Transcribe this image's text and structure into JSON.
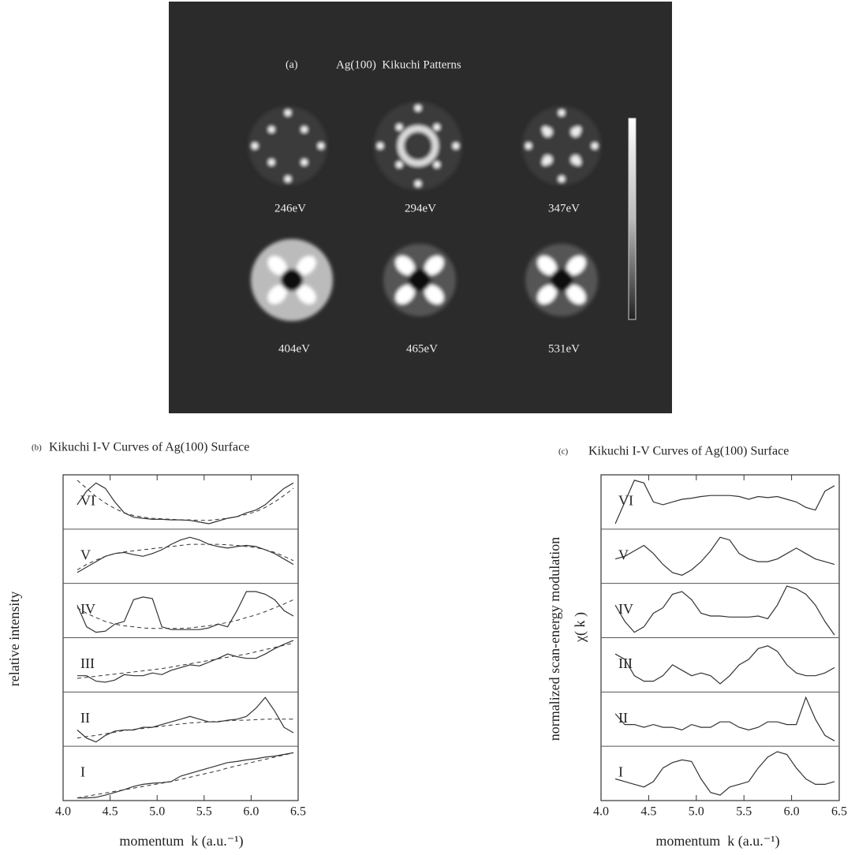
{
  "panel_a": {
    "label": "(a)",
    "title": "Ag(100)  Kikuchi Patterns",
    "energies": [
      "246eV",
      "294eV",
      "347eV",
      "404eV",
      "465eV",
      "531eV"
    ]
  },
  "chart_data": [
    {
      "type": "line",
      "panel_label": "(b)",
      "title": "Kikuchi I-V Curves of Ag(100) Surface",
      "y_label": "relative intensity",
      "x_label": "momentum  k (a.u.⁻¹)",
      "xlim": [
        4.0,
        6.5
      ],
      "xticks": [
        {
          "value": 4,
          "label": "4.0"
        },
        4.5,
        {
          "value": 5,
          "label": "5.0"
        },
        5.5,
        {
          "value": 6,
          "label": "6.0"
        },
        6.5
      ],
      "ylim": [
        0,
        1
      ],
      "color": "#333",
      "x": [
        4.15,
        4.25,
        4.35,
        4.45,
        4.55,
        4.65,
        4.75,
        4.85,
        4.95,
        5.05,
        5.15,
        5.25,
        5.35,
        5.45,
        5.55,
        5.65,
        5.75,
        5.85,
        5.95,
        6.05,
        6.15,
        6.25,
        6.35,
        6.45
      ],
      "series": [
        {
          "name": "VI",
          "values": [
            0.45,
            0.7,
            0.85,
            0.75,
            0.5,
            0.3,
            0.22,
            0.2,
            0.18,
            0.18,
            0.17,
            0.17,
            0.16,
            0.13,
            0.1,
            0.15,
            0.2,
            0.23,
            0.3,
            0.35,
            0.45,
            0.6,
            0.75,
            0.85
          ],
          "dashed_values": [
            0.9,
            0.75,
            0.6,
            0.48,
            0.38,
            0.3,
            0.25,
            0.22,
            0.2,
            0.19,
            0.18,
            0.17,
            0.17,
            0.16,
            0.16,
            0.18,
            0.2,
            0.23,
            0.27,
            0.32,
            0.4,
            0.5,
            0.62,
            0.75
          ]
        },
        {
          "name": "V",
          "values": [
            0.2,
            0.3,
            0.4,
            0.5,
            0.55,
            0.57,
            0.53,
            0.5,
            0.55,
            0.62,
            0.72,
            0.8,
            0.85,
            0.8,
            0.72,
            0.68,
            0.65,
            0.68,
            0.7,
            0.68,
            0.62,
            0.55,
            0.45,
            0.35
          ],
          "dashed_values": [
            0.25,
            0.35,
            0.43,
            0.5,
            0.55,
            0.58,
            0.6,
            0.62,
            0.64,
            0.66,
            0.68,
            0.7,
            0.72,
            0.72,
            0.72,
            0.72,
            0.71,
            0.7,
            0.68,
            0.66,
            0.62,
            0.57,
            0.5,
            0.42
          ]
        },
        {
          "name": "IV",
          "values": [
            0.6,
            0.2,
            0.1,
            0.12,
            0.25,
            0.3,
            0.7,
            0.75,
            0.72,
            0.2,
            0.15,
            0.15,
            0.15,
            0.15,
            0.18,
            0.25,
            0.2,
            0.5,
            0.85,
            0.85,
            0.8,
            0.7,
            0.5,
            0.4
          ],
          "dashed_values": [
            0.55,
            0.45,
            0.37,
            0.3,
            0.25,
            0.22,
            0.2,
            0.18,
            0.17,
            0.17,
            0.17,
            0.17,
            0.18,
            0.2,
            0.22,
            0.25,
            0.28,
            0.32,
            0.37,
            0.42,
            0.48,
            0.55,
            0.62,
            0.7
          ]
        },
        {
          "name": "III",
          "values": [
            0.3,
            0.3,
            0.2,
            0.18,
            0.22,
            0.32,
            0.3,
            0.3,
            0.35,
            0.32,
            0.4,
            0.45,
            0.5,
            0.48,
            0.55,
            0.62,
            0.7,
            0.65,
            0.62,
            0.62,
            0.7,
            0.8,
            0.88,
            0.95
          ],
          "dashed_values": [
            0.25,
            0.27,
            0.29,
            0.31,
            0.33,
            0.35,
            0.37,
            0.39,
            0.41,
            0.43,
            0.46,
            0.49,
            0.52,
            0.55,
            0.58,
            0.61,
            0.64,
            0.67,
            0.7,
            0.74,
            0.78,
            0.82,
            0.86,
            0.9
          ]
        },
        {
          "name": "II",
          "values": [
            0.3,
            0.15,
            0.08,
            0.2,
            0.28,
            0.3,
            0.3,
            0.35,
            0.35,
            0.4,
            0.45,
            0.5,
            0.55,
            0.5,
            0.45,
            0.45,
            0.48,
            0.5,
            0.55,
            0.7,
            0.9,
            0.65,
            0.35,
            0.25
          ],
          "dashed_values": [
            0.15,
            0.18,
            0.2,
            0.23,
            0.26,
            0.29,
            0.31,
            0.33,
            0.35,
            0.37,
            0.39,
            0.41,
            0.43,
            0.44,
            0.45,
            0.46,
            0.47,
            0.48,
            0.48,
            0.49,
            0.5,
            0.5,
            0.5,
            0.5
          ]
        },
        {
          "name": "I",
          "values": [
            0.05,
            0.05,
            0.06,
            0.1,
            0.15,
            0.2,
            0.26,
            0.3,
            0.32,
            0.33,
            0.35,
            0.45,
            0.5,
            0.55,
            0.6,
            0.65,
            0.7,
            0.72,
            0.75,
            0.77,
            0.8,
            0.82,
            0.85,
            0.88
          ],
          "dashed_values": [
            0.05,
            0.08,
            0.11,
            0.14,
            0.17,
            0.2,
            0.23,
            0.26,
            0.29,
            0.32,
            0.35,
            0.39,
            0.43,
            0.47,
            0.51,
            0.55,
            0.6,
            0.64,
            0.68,
            0.72,
            0.76,
            0.8,
            0.84,
            0.88
          ]
        }
      ]
    },
    {
      "type": "line",
      "panel_label": "(c)",
      "title": "Kikuchi I-V Curves of Ag(100) Surface",
      "y_label": "normalized scan-energy modulation",
      "y_label_2": "χ( k )",
      "x_label": "momentum  k (a.u.⁻¹)",
      "xlim": [
        4.0,
        6.5
      ],
      "xticks": [
        {
          "value": 4,
          "label": "4.0"
        },
        4.5,
        {
          "value": 5,
          "label": "5.0"
        },
        5.5,
        {
          "value": 6,
          "label": "6.0"
        },
        6.5
      ],
      "ylim": [
        0,
        1
      ],
      "color": "#333",
      "x": [
        4.15,
        4.25,
        4.35,
        4.45,
        4.55,
        4.65,
        4.75,
        4.85,
        4.95,
        5.05,
        5.15,
        5.25,
        5.35,
        5.45,
        5.55,
        5.65,
        5.75,
        5.85,
        5.95,
        6.05,
        6.15,
        6.25,
        6.35,
        6.45
      ],
      "series": [
        {
          "name": "VI",
          "values": [
            0.1,
            0.5,
            0.9,
            0.85,
            0.5,
            0.45,
            0.5,
            0.55,
            0.57,
            0.6,
            0.62,
            0.62,
            0.62,
            0.6,
            0.55,
            0.6,
            0.58,
            0.6,
            0.55,
            0.5,
            0.4,
            0.35,
            0.7,
            0.8
          ]
        },
        {
          "name": "V",
          "values": [
            0.45,
            0.5,
            0.6,
            0.7,
            0.55,
            0.35,
            0.2,
            0.15,
            0.25,
            0.4,
            0.6,
            0.85,
            0.8,
            0.55,
            0.45,
            0.4,
            0.4,
            0.45,
            0.55,
            0.65,
            0.55,
            0.45,
            0.4,
            0.35
          ]
        },
        {
          "name": "IV",
          "values": [
            0.6,
            0.3,
            0.1,
            0.2,
            0.45,
            0.55,
            0.8,
            0.85,
            0.7,
            0.45,
            0.4,
            0.4,
            0.38,
            0.38,
            0.38,
            0.4,
            0.35,
            0.6,
            0.95,
            0.9,
            0.8,
            0.6,
            0.3,
            0.05
          ]
        },
        {
          "name": "III",
          "values": [
            0.7,
            0.6,
            0.3,
            0.2,
            0.2,
            0.3,
            0.5,
            0.4,
            0.3,
            0.35,
            0.3,
            0.15,
            0.3,
            0.5,
            0.6,
            0.8,
            0.85,
            0.75,
            0.5,
            0.35,
            0.3,
            0.3,
            0.35,
            0.45
          ]
        },
        {
          "name": "II",
          "values": [
            0.6,
            0.4,
            0.4,
            0.35,
            0.4,
            0.35,
            0.35,
            0.3,
            0.4,
            0.35,
            0.35,
            0.45,
            0.45,
            0.35,
            0.3,
            0.35,
            0.45,
            0.45,
            0.4,
            0.4,
            0.9,
            0.5,
            0.2,
            0.1
          ]
        },
        {
          "name": "I",
          "values": [
            0.4,
            0.35,
            0.3,
            0.25,
            0.35,
            0.6,
            0.7,
            0.75,
            0.72,
            0.4,
            0.15,
            0.1,
            0.25,
            0.3,
            0.35,
            0.6,
            0.8,
            0.9,
            0.85,
            0.6,
            0.4,
            0.3,
            0.3,
            0.35
          ]
        }
      ]
    }
  ]
}
